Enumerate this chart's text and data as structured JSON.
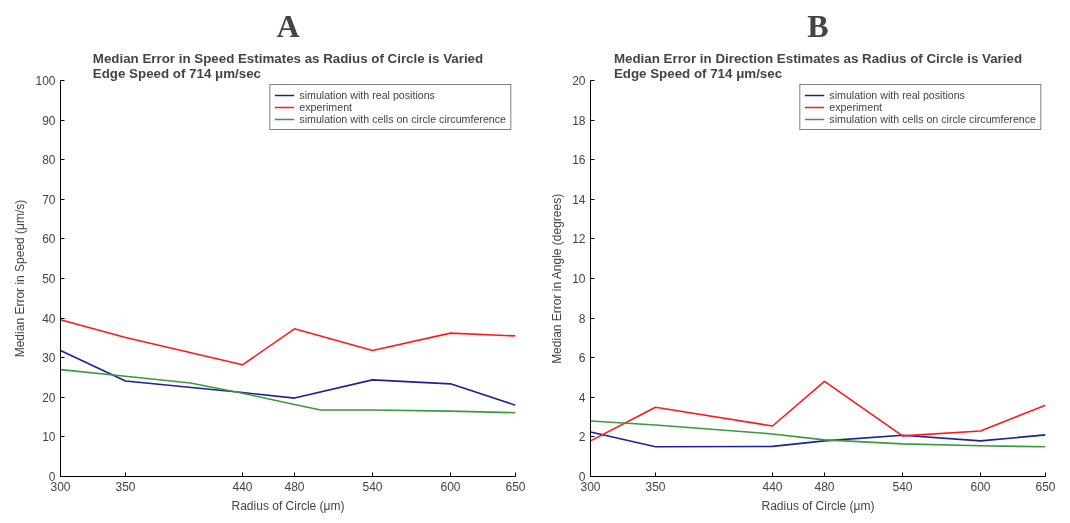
{
  "chart_data": [
    {
      "type": "line",
      "title": "A",
      "subtitle": "Median Error in Speed Estimates as Radius of Circle is Varied\nEdge Speed of 714 μm/sec",
      "xlabel": "Radius of Circle (μm)",
      "ylabel": "Median Error in Speed (μm/s)",
      "xlim": [
        300,
        650
      ],
      "xticks": [
        300,
        350,
        440,
        480,
        540,
        600,
        650
      ],
      "ylim": [
        0,
        100
      ],
      "yticks": [
        0,
        10,
        20,
        30,
        40,
        50,
        60,
        70,
        80,
        90,
        100
      ],
      "grid": false,
      "legend": "top right",
      "x": [
        300,
        350,
        440,
        480,
        540,
        600,
        650
      ],
      "series": [
        {
          "name": "simulation with real positions",
          "color": "#1f1f9a",
          "values": [
            31.8,
            24.1,
            21.2,
            19.8,
            24.4,
            23.4,
            18.0
          ]
        },
        {
          "name": "experiment",
          "color": "#ff1a1a",
          "values": [
            39.6,
            35.1,
            28.2,
            37.3,
            31.8,
            36.2,
            35.5
          ]
        },
        {
          "name": "simulation with cells on circle circumference",
          "color": "#3a9a3a",
          "x": [
            300,
            350,
            400,
            440,
            480,
            500,
            540,
            600,
            650
          ],
          "values": [
            27.0,
            25.3,
            23.6,
            21.0,
            18.2,
            16.8,
            16.8,
            16.5,
            16.1
          ]
        }
      ]
    },
    {
      "type": "line",
      "title": "B",
      "subtitle": "Median Error in Direction Estimates as Radius of Circle is Varied\nEdge Speed of 714 μm/sec",
      "xlabel": "Radius of Circle (μm)",
      "ylabel": "Median Error in Angle (degrees)",
      "xlim": [
        300,
        650
      ],
      "xticks": [
        300,
        350,
        440,
        480,
        540,
        600,
        650
      ],
      "ylim": [
        0,
        20
      ],
      "yticks": [
        0,
        2,
        4,
        6,
        8,
        10,
        12,
        14,
        16,
        18,
        20
      ],
      "grid": false,
      "legend": "top right",
      "x": [
        300,
        350,
        440,
        480,
        540,
        600,
        650
      ],
      "series": [
        {
          "name": "simulation with real positions",
          "color": "#1f1f9a",
          "values": [
            2.25,
            1.5,
            1.52,
            1.8,
            2.08,
            1.8,
            2.1
          ]
        },
        {
          "name": "experiment",
          "color": "#ff1a1a",
          "values": [
            1.8,
            3.5,
            2.55,
            4.8,
            2.05,
            2.3,
            3.6
          ]
        },
        {
          "name": "simulation with cells on circle circumference",
          "color": "#3a9a3a",
          "values": [
            2.8,
            2.6,
            2.15,
            1.85,
            1.65,
            1.55,
            1.5
          ]
        }
      ]
    }
  ]
}
